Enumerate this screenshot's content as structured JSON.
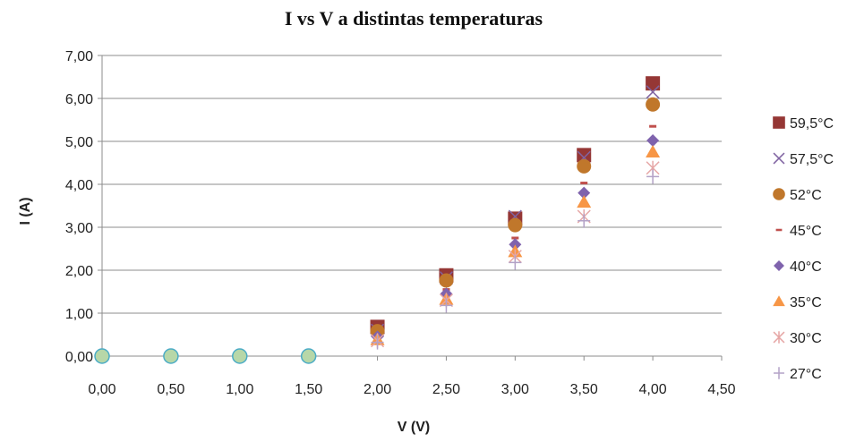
{
  "chart_data": {
    "type": "scatter",
    "title": "I vs V a distintas temperaturas",
    "xlabel": "V (V)",
    "ylabel": "I (A)",
    "xlim": [
      0,
      4.5
    ],
    "ylim": [
      0,
      7
    ],
    "x_ticks": [
      "0,00",
      "0,50",
      "1,00",
      "1,50",
      "2,00",
      "2,50",
      "3,00",
      "3,50",
      "4,00",
      "4,50"
    ],
    "y_ticks": [
      "0,00",
      "1,00",
      "2,00",
      "3,00",
      "4,00",
      "5,00",
      "6,00",
      "7,00"
    ],
    "grid": "horizontal",
    "legend_position": "right",
    "x": [
      0,
      0.5,
      1.0,
      1.5,
      2.0,
      2.5,
      3.0,
      3.5,
      4.0
    ],
    "series": [
      {
        "name": "59,5°C",
        "marker": "square",
        "color": "#953735",
        "values": [
          0,
          0,
          0,
          0,
          0.68,
          1.88,
          3.2,
          4.68,
          6.35
        ]
      },
      {
        "name": "57,5°C",
        "marker": "x",
        "color": "#8064a2",
        "values": [
          0,
          0,
          0,
          0,
          0.6,
          1.82,
          3.25,
          4.62,
          6.15
        ]
      },
      {
        "name": "52°C",
        "marker": "circle",
        "color": "#c0772b",
        "values": [
          0,
          0,
          0,
          0,
          0.58,
          1.76,
          3.05,
          4.42,
          5.86
        ]
      },
      {
        "name": "45°C",
        "marker": "dash",
        "color": "#c0504d",
        "values": [
          0,
          0,
          0,
          0,
          0.5,
          1.55,
          2.75,
          4.03,
          5.35
        ]
      },
      {
        "name": "40°C",
        "marker": "diamond",
        "color": "#7f63ad",
        "values": [
          0,
          0,
          0,
          0,
          0.45,
          1.45,
          2.6,
          3.8,
          5.02
        ]
      },
      {
        "name": "35°C",
        "marker": "triangle",
        "color": "#f79646",
        "values": [
          0,
          0,
          0,
          0,
          0.38,
          1.32,
          2.43,
          3.58,
          4.75
        ]
      },
      {
        "name": "30°C",
        "marker": "asterisk",
        "color": "#e6a6a5",
        "values": [
          0,
          0,
          0,
          0,
          0.36,
          1.3,
          2.32,
          3.25,
          4.38
        ]
      },
      {
        "name": "27°C",
        "marker": "plus",
        "color": "#b3a2c7",
        "values": [
          0,
          0,
          0,
          0,
          0.32,
          1.18,
          2.18,
          3.15,
          4.18
        ]
      }
    ],
    "overlap_marker_color": "#b7d7a8",
    "overlap_marker_edge": "#4bacc6"
  }
}
